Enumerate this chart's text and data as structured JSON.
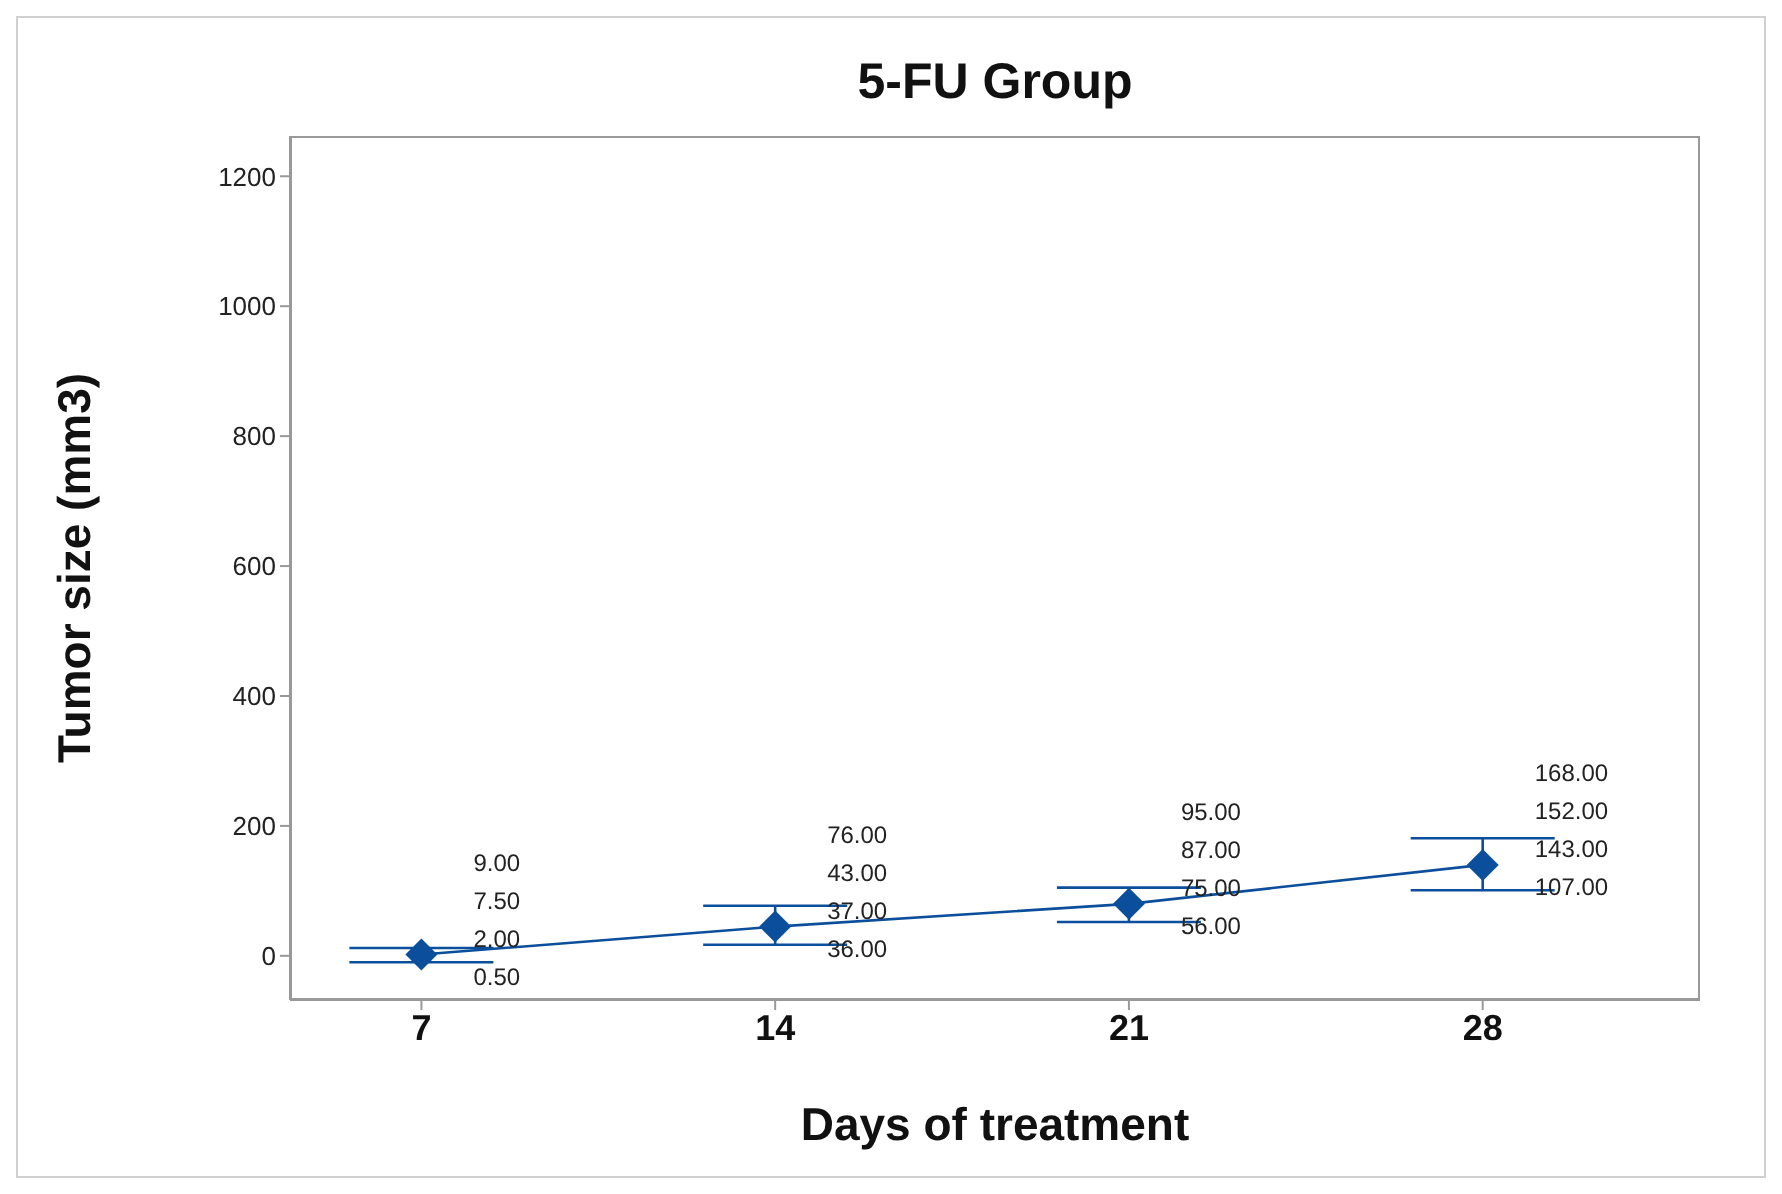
{
  "chart_data": {
    "type": "line",
    "title": "5-FU Group",
    "xlabel": "Days of treatment",
    "ylabel": "Tumor size (mm3)",
    "x": [
      7,
      14,
      21,
      28
    ],
    "series": [
      {
        "color": "#0b4f9c",
        "values": [
          2,
          45,
          80,
          140
        ],
        "errors": [
          [
            -10,
            12
          ],
          [
            17,
            77
          ],
          [
            52,
            105
          ],
          [
            101,
            181
          ]
        ]
      }
    ],
    "xlim": [
      4.4,
      32.3
    ],
    "xticks": [
      7,
      14,
      21,
      28
    ],
    "ylim": [
      -68,
      1262
    ],
    "yticks": [
      0,
      200,
      400,
      600,
      800,
      1000,
      1200
    ],
    "marker": "diamond",
    "line_style": "solid",
    "grid": false,
    "legend": false,
    "annotations": [
      "9.00",
      "7.50",
      "2.00",
      "0.50",
      "76.00",
      "43.00",
      "37.00",
      "36.00",
      "95.00",
      "87.00",
      "75.00",
      "56.00",
      "168.00",
      "152.00",
      "143.00",
      "107.00"
    ]
  }
}
